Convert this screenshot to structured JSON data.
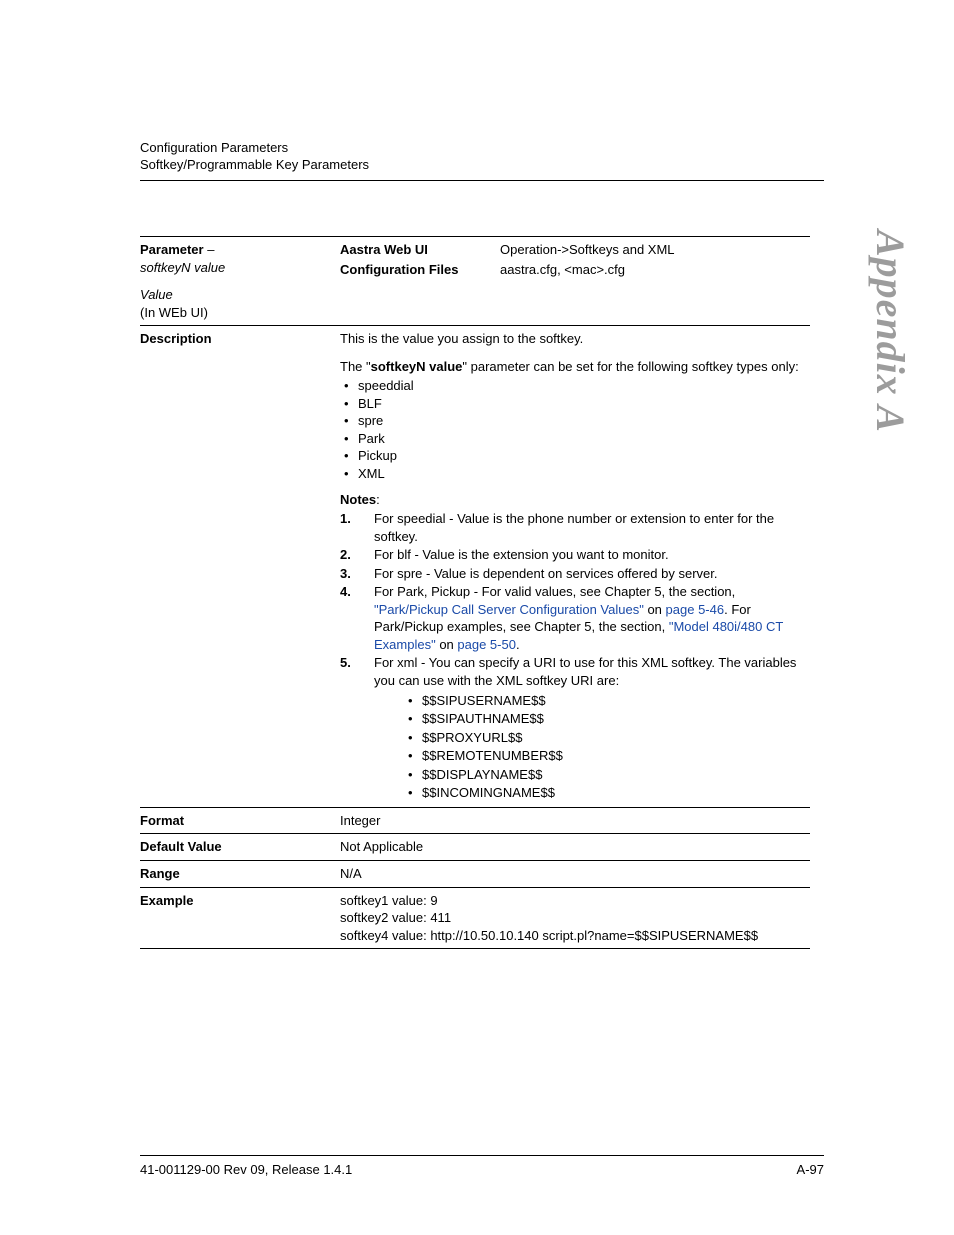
{
  "header": {
    "line1": "Configuration Parameters",
    "line2": "Softkey/Programmable Key Parameters"
  },
  "side_tab": "Appendix A",
  "table": {
    "parameter": {
      "label_bold": "Parameter",
      "dash": " – ",
      "name_italic": "softkeyN value",
      "value_label_italic": "Value",
      "value_sub": "(In WEb UI)",
      "webui_label": "Aastra Web UI",
      "webui_value": "Operation->Softkeys and XML",
      "cfg_label": "Configuration Files",
      "cfg_value": "aastra.cfg, <mac>.cfg"
    },
    "description": {
      "label": "Description",
      "intro": "This is the value you assign to the softkey.",
      "para_pre": "The \"",
      "para_bold": "softkeyN value",
      "para_post": "\" parameter can be set for the following softkey types only:",
      "types": [
        "speeddial",
        "BLF",
        "spre",
        "Park",
        "Pickup",
        "XML"
      ],
      "notes_label": "Notes",
      "notes": {
        "n1": "For speedial - Value is the phone number or extension to enter for the softkey.",
        "n2": "For blf - Value is the extension you want to monitor.",
        "n3": "For spre - Value is dependent on services offered by server.",
        "n4_a": "For Park, Pickup - For valid values, see Chapter 5, the section, ",
        "n4_link1": "\"Park/Pickup Call Server Configuration Values\"",
        "n4_b": " on ",
        "n4_link2": "page 5-46",
        "n4_c": ". For Park/Pickup examples, see Chapter 5, the section, ",
        "n4_link3": "\"Model 480i/480 CT Examples\"",
        "n4_d": " on ",
        "n4_link4": "page 5-50",
        "n4_e": ".",
        "n5": "For xml - You can specify a URI to use for this XML softkey. The variables you can use with the XML softkey URI are:",
        "n5_vars": [
          "$$SIPUSERNAME$$",
          "$$SIPAUTHNAME$$",
          "$$PROXYURL$$",
          "$$REMOTENUMBER$$",
          "$$DISPLAYNAME$$",
          "$$INCOMINGNAME$$"
        ]
      }
    },
    "format": {
      "label": "Format",
      "value": "Integer"
    },
    "default": {
      "label": "Default Value",
      "value": "Not Applicable"
    },
    "range": {
      "label": "Range",
      "value": "N/A"
    },
    "example": {
      "label": "Example",
      "l1": "softkey1 value: 9",
      "l2": "softkey2 value: 411",
      "l3": "softkey4 value: http://10.50.10.140 script.pl?name=$$SIPUSERNAME$$"
    }
  },
  "footer": {
    "left": "41-001129-00 Rev 09, Release 1.4.1",
    "right": "A-97"
  },
  "colors": {
    "link": "#1a4aa8",
    "side_tab": "#9c9c9c"
  }
}
